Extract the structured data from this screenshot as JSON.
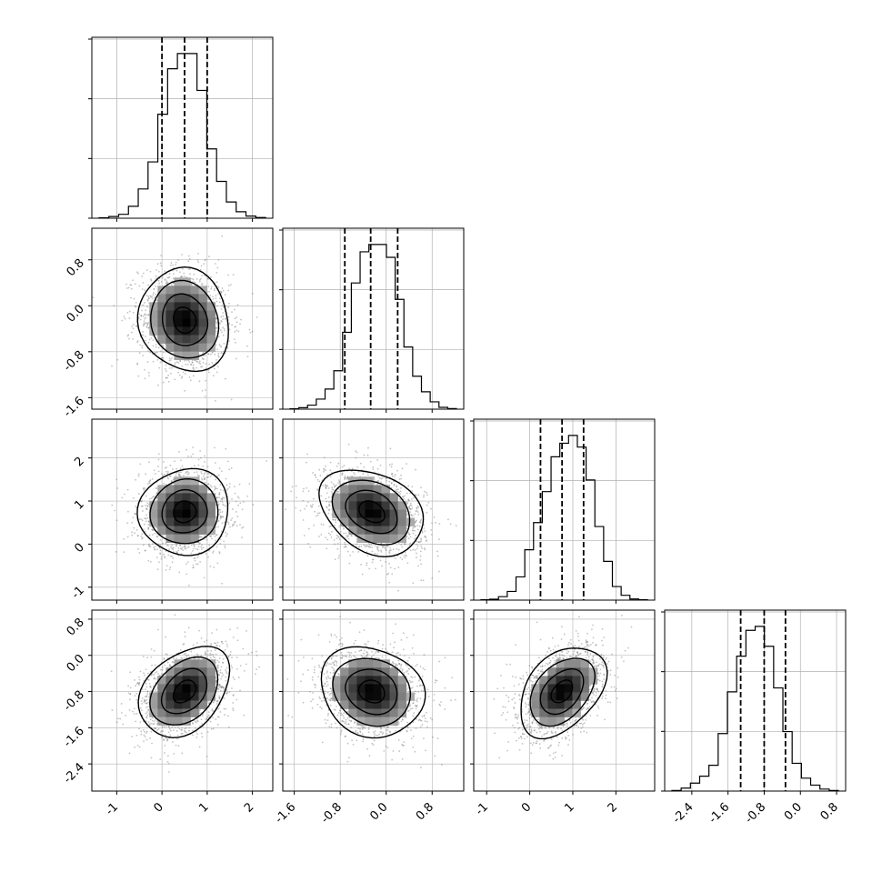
{
  "chart_data": {
    "type": "corner",
    "params": [
      {
        "mean": 0.5,
        "sd": 0.5,
        "range": [
          -1.55,
          2.45
        ],
        "ticks": [
          "-1",
          "0",
          "1",
          "2"
        ],
        "tick_values": [
          -1,
          0,
          1,
          2
        ],
        "quantiles": [
          0.0,
          0.5,
          1.0
        ],
        "hist": [
          2,
          8,
          18,
          55,
          135,
          260,
          480,
          690,
          760,
          760,
          590,
          320,
          170,
          75,
          30,
          10,
          3
        ]
      },
      {
        "mean": -0.25,
        "sd": 0.45,
        "range": [
          -1.8,
          1.35
        ],
        "ticks": [
          "-1.6",
          "-0.8",
          "0.0",
          "0.8"
        ],
        "tick_values": [
          -1.6,
          -0.8,
          0.0,
          0.8
        ],
        "quantiles": [
          -0.72,
          -0.27,
          0.2
        ],
        "hist": [
          2,
          8,
          22,
          55,
          110,
          210,
          420,
          690,
          860,
          900,
          900,
          830,
          600,
          340,
          180,
          95,
          40,
          10,
          3
        ]
      },
      {
        "mean": 0.75,
        "sd": 0.5,
        "range": [
          -1.3,
          2.9
        ],
        "ticks": [
          "-1",
          "0",
          "1",
          "2"
        ],
        "tick_values": [
          -1,
          0,
          1,
          2
        ],
        "quantiles": [
          0.25,
          0.75,
          1.25
        ],
        "hist": [
          2,
          5,
          18,
          45,
          120,
          260,
          400,
          560,
          740,
          810,
          850,
          790,
          620,
          380,
          200,
          70,
          25,
          6,
          2
        ]
      },
      {
        "mean": -0.8,
        "sd": 0.5,
        "range": [
          -3.0,
          1.0
        ],
        "ticks": [
          "-2.4",
          "-1.6",
          "-0.8",
          "0.0",
          "0.8"
        ],
        "tick_values": [
          -2.4,
          -1.6,
          -0.8,
          0.0,
          0.8
        ],
        "quantiles": [
          -1.32,
          -0.8,
          -0.33
        ],
        "hist": [
          3,
          15,
          40,
          75,
          130,
          290,
          500,
          680,
          810,
          830,
          730,
          520,
          300,
          140,
          65,
          30,
          10,
          3
        ]
      }
    ],
    "correlations": [
      [
        1,
        -0.1,
        0.05,
        0.35
      ],
      [
        -0.1,
        1,
        -0.3,
        -0.15
      ],
      [
        0.05,
        -0.3,
        1,
        0.4
      ],
      [
        0.35,
        -0.15,
        0.4,
        1
      ]
    ],
    "contour_levels_sigma": [
      0.5,
      1.0,
      1.5,
      2.0
    ],
    "colors": {
      "hist": "#000000",
      "quantile": "#000000",
      "points": "#7a7a7a",
      "grid": "#b0b0b0",
      "density_dark": "#000000"
    },
    "grid": true,
    "xlabel": "",
    "ylabel": "",
    "title": ""
  }
}
